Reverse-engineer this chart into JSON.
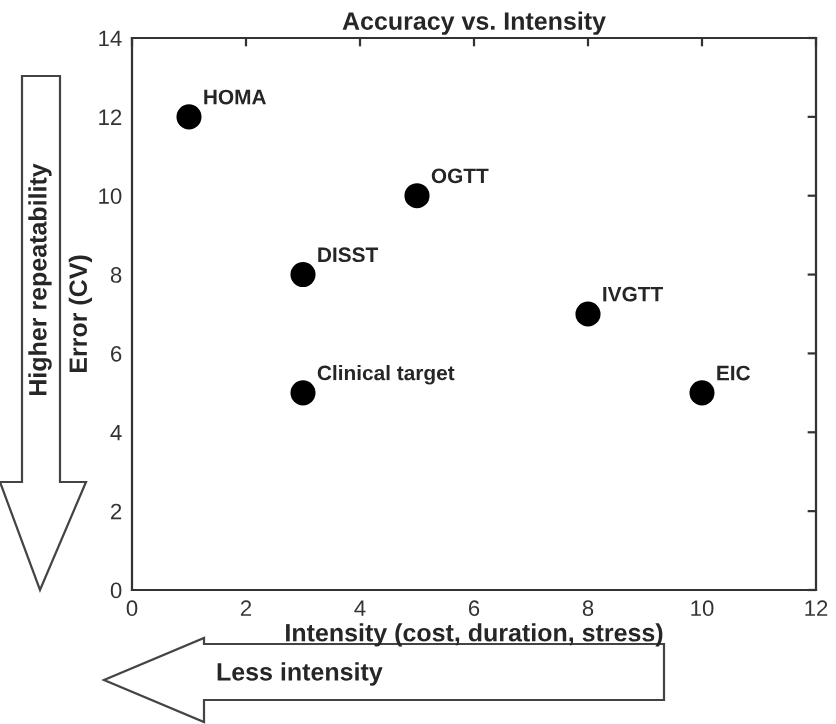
{
  "chart_data": {
    "type": "scatter",
    "title": "Accuracy vs. Intensity",
    "xlabel": "Intensity (cost, duration, stress)",
    "ylabel": "Error (CV)",
    "series": [
      {
        "color": "#000000",
        "x": [
          1,
          3,
          5,
          3,
          8,
          10
        ],
        "values": [
          12,
          5,
          10,
          8,
          7,
          5
        ]
      }
    ],
    "marker": "circle",
    "xlim": [
      0,
      12
    ],
    "ylim": [
      0,
      14
    ],
    "xticks": [
      0,
      2,
      4,
      6,
      8,
      10,
      12
    ],
    "yticks": [
      0,
      2,
      4,
      6,
      8,
      10,
      12,
      14
    ],
    "grid": false,
    "legend": false,
    "annotations": [
      {
        "text": "HOMA",
        "x": 1,
        "y": 12
      },
      {
        "text": "Clinical target",
        "x": 3,
        "y": 5
      },
      {
        "text": "OGTT",
        "x": 5,
        "y": 10
      },
      {
        "text": "DISST",
        "x": 3,
        "y": 8
      },
      {
        "text": "IVGTT",
        "x": 8,
        "y": 7
      },
      {
        "text": "EIC",
        "x": 10,
        "y": 5
      },
      "Higher repeatability",
      "Less intensity"
    ]
  }
}
